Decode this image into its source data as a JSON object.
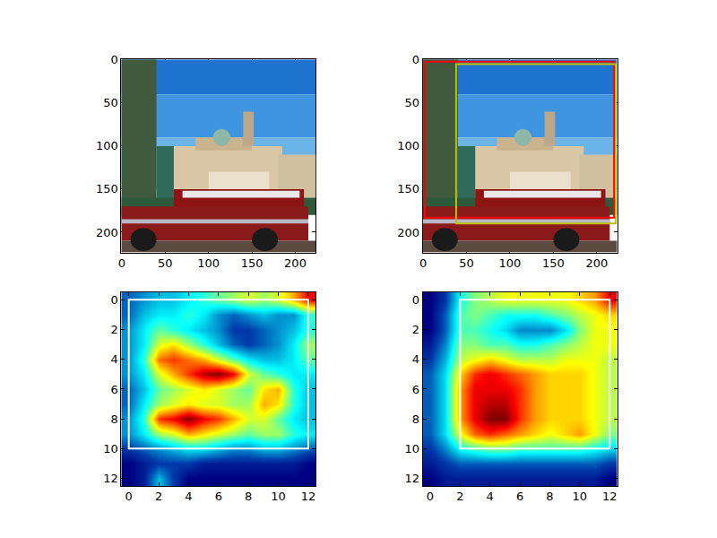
{
  "chart_data": [
    {
      "type": "image",
      "xlim": [
        -0.5,
        223.5
      ],
      "xticks": [
        0,
        50,
        100,
        150,
        200
      ],
      "ylim": [
        223.5,
        -0.5
      ],
      "yticks": [
        0,
        50,
        100,
        150,
        200
      ],
      "boxes": []
    },
    {
      "type": "image",
      "xlim": [
        -0.5,
        223.5
      ],
      "xticks": [
        0,
        50,
        100,
        150,
        200
      ],
      "ylim": [
        223.5,
        -0.5
      ],
      "yticks": [
        0,
        50,
        100,
        150,
        200
      ],
      "boxes": [
        {
          "x0": 2,
          "x1": 220,
          "y0": 2,
          "y1": 183,
          "color": "#ff0000"
        },
        {
          "x0": 38,
          "x1": 222,
          "y0": 5,
          "y1": 190,
          "color": "#bfbf00"
        }
      ]
    },
    {
      "type": "heatmap",
      "xlim": [
        -0.5,
        12.5
      ],
      "xticks": [
        0,
        2,
        4,
        6,
        8,
        10,
        12
      ],
      "ylim": [
        12.5,
        -0.5
      ],
      "yticks": [
        0,
        2,
        4,
        6,
        8,
        10,
        12
      ],
      "cells": [
        [
          0.25,
          0.3,
          0.35,
          0.35,
          0.4,
          0.45,
          0.5,
          0.55,
          0.6,
          0.55,
          0.6,
          0.7,
          0.85
        ],
        [
          0.25,
          0.35,
          0.4,
          0.4,
          0.45,
          0.4,
          0.3,
          0.25,
          0.3,
          0.35,
          0.3,
          0.3,
          0.45
        ],
        [
          0.3,
          0.4,
          0.5,
          0.45,
          0.4,
          0.35,
          0.3,
          0.2,
          0.2,
          0.25,
          0.3,
          0.35,
          0.45
        ],
        [
          0.3,
          0.4,
          0.6,
          0.65,
          0.55,
          0.45,
          0.35,
          0.25,
          0.2,
          0.25,
          0.3,
          0.4,
          0.55
        ],
        [
          0.3,
          0.45,
          0.75,
          0.8,
          0.75,
          0.7,
          0.6,
          0.5,
          0.4,
          0.35,
          0.35,
          0.4,
          0.5
        ],
        [
          0.3,
          0.4,
          0.6,
          0.7,
          0.8,
          0.9,
          0.95,
          0.85,
          0.6,
          0.5,
          0.45,
          0.4,
          0.4
        ],
        [
          0.25,
          0.35,
          0.5,
          0.55,
          0.6,
          0.65,
          0.6,
          0.55,
          0.5,
          0.65,
          0.7,
          0.45,
          0.35
        ],
        [
          0.25,
          0.4,
          0.55,
          0.6,
          0.65,
          0.6,
          0.6,
          0.55,
          0.55,
          0.7,
          0.65,
          0.45,
          0.35
        ],
        [
          0.3,
          0.45,
          0.8,
          0.85,
          0.95,
          0.85,
          0.8,
          0.7,
          0.6,
          0.6,
          0.5,
          0.4,
          0.35
        ],
        [
          0.3,
          0.4,
          0.55,
          0.6,
          0.7,
          0.65,
          0.6,
          0.55,
          0.5,
          0.55,
          0.55,
          0.45,
          0.4
        ],
        [
          0.2,
          0.25,
          0.3,
          0.35,
          0.4,
          0.4,
          0.35,
          0.3,
          0.3,
          0.35,
          0.35,
          0.3,
          0.25
        ],
        [
          0.1,
          0.15,
          0.2,
          0.2,
          0.2,
          0.15,
          0.15,
          0.15,
          0.15,
          0.15,
          0.15,
          0.15,
          0.1
        ],
        [
          0.1,
          0.15,
          0.35,
          0.2,
          0.1,
          0.1,
          0.1,
          0.1,
          0.1,
          0.1,
          0.1,
          0.1,
          0.1
        ]
      ],
      "boxes": [
        {
          "x0": 0,
          "x1": 12,
          "y0": 0,
          "y1": 10,
          "color": "#ffffff"
        }
      ]
    },
    {
      "type": "heatmap",
      "xlim": [
        -0.5,
        12.5
      ],
      "xticks": [
        0,
        2,
        4,
        6,
        8,
        10,
        12
      ],
      "ylim": [
        12.5,
        -0.5
      ],
      "yticks": [
        0,
        2,
        4,
        6,
        8,
        10,
        12
      ],
      "cells": [
        [
          0.05,
          0.15,
          0.4,
          0.5,
          0.55,
          0.6,
          0.6,
          0.6,
          0.6,
          0.6,
          0.65,
          0.7,
          0.85
        ],
        [
          0.05,
          0.2,
          0.45,
          0.5,
          0.45,
          0.4,
          0.4,
          0.4,
          0.45,
          0.5,
          0.55,
          0.6,
          0.65
        ],
        [
          0.05,
          0.2,
          0.45,
          0.45,
          0.4,
          0.35,
          0.25,
          0.25,
          0.25,
          0.35,
          0.5,
          0.6,
          0.6
        ],
        [
          0.1,
          0.25,
          0.5,
          0.5,
          0.45,
          0.45,
          0.4,
          0.4,
          0.45,
          0.5,
          0.55,
          0.6,
          0.6
        ],
        [
          0.15,
          0.3,
          0.55,
          0.6,
          0.65,
          0.6,
          0.55,
          0.55,
          0.55,
          0.6,
          0.6,
          0.6,
          0.55
        ],
        [
          0.2,
          0.35,
          0.65,
          0.8,
          0.85,
          0.8,
          0.75,
          0.7,
          0.65,
          0.65,
          0.65,
          0.6,
          0.55
        ],
        [
          0.2,
          0.35,
          0.7,
          0.85,
          0.85,
          0.85,
          0.8,
          0.7,
          0.65,
          0.65,
          0.65,
          0.6,
          0.55
        ],
        [
          0.2,
          0.35,
          0.7,
          0.85,
          0.9,
          0.9,
          0.8,
          0.7,
          0.65,
          0.65,
          0.65,
          0.6,
          0.55
        ],
        [
          0.2,
          0.35,
          0.7,
          0.85,
          0.95,
          0.95,
          0.8,
          0.7,
          0.65,
          0.65,
          0.65,
          0.6,
          0.55
        ],
        [
          0.2,
          0.35,
          0.6,
          0.75,
          0.8,
          0.75,
          0.7,
          0.65,
          0.6,
          0.65,
          0.7,
          0.6,
          0.5
        ],
        [
          0.15,
          0.25,
          0.4,
          0.45,
          0.5,
          0.5,
          0.45,
          0.45,
          0.45,
          0.45,
          0.45,
          0.4,
          0.35
        ],
        [
          0.1,
          0.15,
          0.2,
          0.2,
          0.2,
          0.2,
          0.2,
          0.2,
          0.2,
          0.2,
          0.2,
          0.2,
          0.15
        ],
        [
          0.05,
          0.1,
          0.1,
          0.1,
          0.1,
          0.1,
          0.1,
          0.1,
          0.1,
          0.1,
          0.1,
          0.1,
          0.05
        ]
      ],
      "boxes": [
        {
          "x0": 2,
          "x1": 12,
          "y0": 0,
          "y1": 10,
          "color": "#ffffff"
        }
      ]
    }
  ]
}
